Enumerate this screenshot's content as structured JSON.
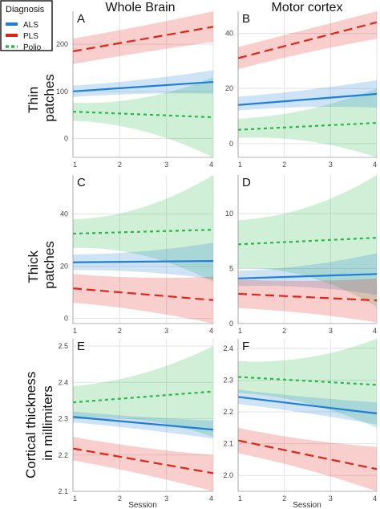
{
  "legend": {
    "title": "Diagnosis",
    "entries": [
      {
        "name": "ALS",
        "color": "#1f7fd6",
        "dash": "solid"
      },
      {
        "name": "PLS",
        "color": "#e0231b",
        "dash": "dashed"
      },
      {
        "name": "Polio",
        "color": "#2bb64a",
        "dash": "dotted"
      }
    ]
  },
  "columns": [
    "Whole Brain",
    "Motor cortex"
  ],
  "rows": [
    {
      "lines": [
        "Thin",
        "patches"
      ]
    },
    {
      "lines": [
        "Thick",
        "patches"
      ]
    },
    {
      "lines": [
        "Cortical thickness",
        "in millimiters"
      ]
    }
  ],
  "xlabel": "Session",
  "chart_data": [
    {
      "panel": "A",
      "type": "line",
      "row": "Thin patches",
      "column": "Whole Brain",
      "x": [
        1,
        4
      ],
      "xticks": [
        1,
        2,
        3,
        4
      ],
      "xlim": [
        1,
        4
      ],
      "ylim": [
        -40,
        270
      ],
      "yticks": [
        0,
        100,
        200
      ],
      "series": [
        {
          "name": "ALS",
          "values": [
            100,
            120
          ],
          "lower": [
            88,
            95
          ],
          "upper": [
            112,
            145
          ]
        },
        {
          "name": "PLS",
          "values": [
            185,
            237
          ],
          "lower": [
            158,
            205
          ],
          "upper": [
            212,
            270
          ]
        },
        {
          "name": "Polio",
          "values": [
            57,
            45
          ],
          "lower": [
            38,
            -40
          ],
          "upper": [
            76,
            130
          ]
        }
      ]
    },
    {
      "panel": "B",
      "type": "line",
      "row": "Thin patches",
      "column": "Motor cortex",
      "x": [
        1,
        4
      ],
      "xticks": [
        1,
        2,
        3,
        4
      ],
      "xlim": [
        1,
        4
      ],
      "ylim": [
        -5,
        48
      ],
      "yticks": [
        0,
        20,
        40
      ],
      "series": [
        {
          "name": "ALS",
          "values": [
            14,
            18
          ],
          "lower": [
            12,
            13
          ],
          "upper": [
            17,
            23
          ]
        },
        {
          "name": "PLS",
          "values": [
            31,
            44
          ],
          "lower": [
            27,
            38
          ],
          "upper": [
            35,
            48
          ]
        },
        {
          "name": "Polio",
          "values": [
            5,
            7.5
          ],
          "lower": [
            2,
            -5
          ],
          "upper": [
            9,
            20
          ]
        }
      ]
    },
    {
      "panel": "C",
      "type": "line",
      "row": "Thick patches",
      "column": "Whole Brain",
      "x": [
        1,
        4
      ],
      "xticks": [
        1,
        2,
        3,
        4
      ],
      "xlim": [
        1,
        4
      ],
      "ylim": [
        -2,
        55
      ],
      "yticks": [
        0,
        20,
        40
      ],
      "series": [
        {
          "name": "ALS",
          "values": [
            21.5,
            22
          ],
          "lower": [
            18.5,
            15
          ],
          "upper": [
            24.5,
            29
          ]
        },
        {
          "name": "PLS",
          "values": [
            11.5,
            7
          ],
          "lower": [
            6,
            -2
          ],
          "upper": [
            17,
            16
          ]
        },
        {
          "name": "Polio",
          "values": [
            32.5,
            34
          ],
          "lower": [
            27,
            14
          ],
          "upper": [
            38,
            55
          ]
        }
      ]
    },
    {
      "panel": "D",
      "type": "line",
      "row": "Thick patches",
      "column": "Motor cortex",
      "x": [
        1,
        4
      ],
      "xticks": [
        1,
        2,
        3,
        4
      ],
      "xlim": [
        1,
        4
      ],
      "ylim": [
        0,
        13.5
      ],
      "yticks": [
        0,
        5,
        10
      ],
      "series": [
        {
          "name": "ALS",
          "values": [
            4.1,
            4.5
          ],
          "lower": [
            3.4,
            2.6
          ],
          "upper": [
            4.8,
            6.4
          ]
        },
        {
          "name": "PLS",
          "values": [
            2.7,
            2.1
          ],
          "lower": [
            1.4,
            0.1
          ],
          "upper": [
            4.0,
            4.1
          ]
        },
        {
          "name": "Polio",
          "values": [
            7.2,
            7.8
          ],
          "lower": [
            5.0,
            1.5
          ],
          "upper": [
            9.4,
            13.5
          ]
        }
      ]
    },
    {
      "panel": "E",
      "type": "line",
      "row": "Cortical thickness in millimiters",
      "column": "Whole Brain",
      "x": [
        1,
        4
      ],
      "xticks": [
        1,
        2,
        3,
        4
      ],
      "xlim": [
        1,
        4
      ],
      "ylim": [
        2.1,
        2.52
      ],
      "yticks": [
        2.1,
        2.2,
        2.3,
        2.4,
        2.5
      ],
      "series": [
        {
          "name": "ALS",
          "values": [
            2.305,
            2.27
          ],
          "lower": [
            2.29,
            2.245
          ],
          "upper": [
            2.32,
            2.295
          ]
        },
        {
          "name": "PLS",
          "values": [
            2.218,
            2.15
          ],
          "lower": [
            2.185,
            2.1
          ],
          "upper": [
            2.25,
            2.2
          ]
        },
        {
          "name": "Polio",
          "values": [
            2.345,
            2.375
          ],
          "lower": [
            2.3,
            2.25
          ],
          "upper": [
            2.39,
            2.5
          ]
        }
      ]
    },
    {
      "panel": "F",
      "type": "line",
      "row": "Cortical thickness in millimiters",
      "column": "Motor cortex",
      "x": [
        1,
        4
      ],
      "xticks": [
        1,
        2,
        3,
        4
      ],
      "xlim": [
        1,
        4
      ],
      "ylim": [
        1.95,
        2.43
      ],
      "yticks": [
        2.0,
        2.1,
        2.2,
        2.3,
        2.4
      ],
      "series": [
        {
          "name": "ALS",
          "values": [
            2.247,
            2.195
          ],
          "lower": [
            2.225,
            2.16
          ],
          "upper": [
            2.27,
            2.23
          ]
        },
        {
          "name": "PLS",
          "values": [
            2.11,
            2.02
          ],
          "lower": [
            2.07,
            1.95
          ],
          "upper": [
            2.15,
            2.09
          ]
        },
        {
          "name": "Polio",
          "values": [
            2.31,
            2.285
          ],
          "lower": [
            2.26,
            2.15
          ],
          "upper": [
            2.36,
            2.43
          ]
        }
      ]
    }
  ]
}
